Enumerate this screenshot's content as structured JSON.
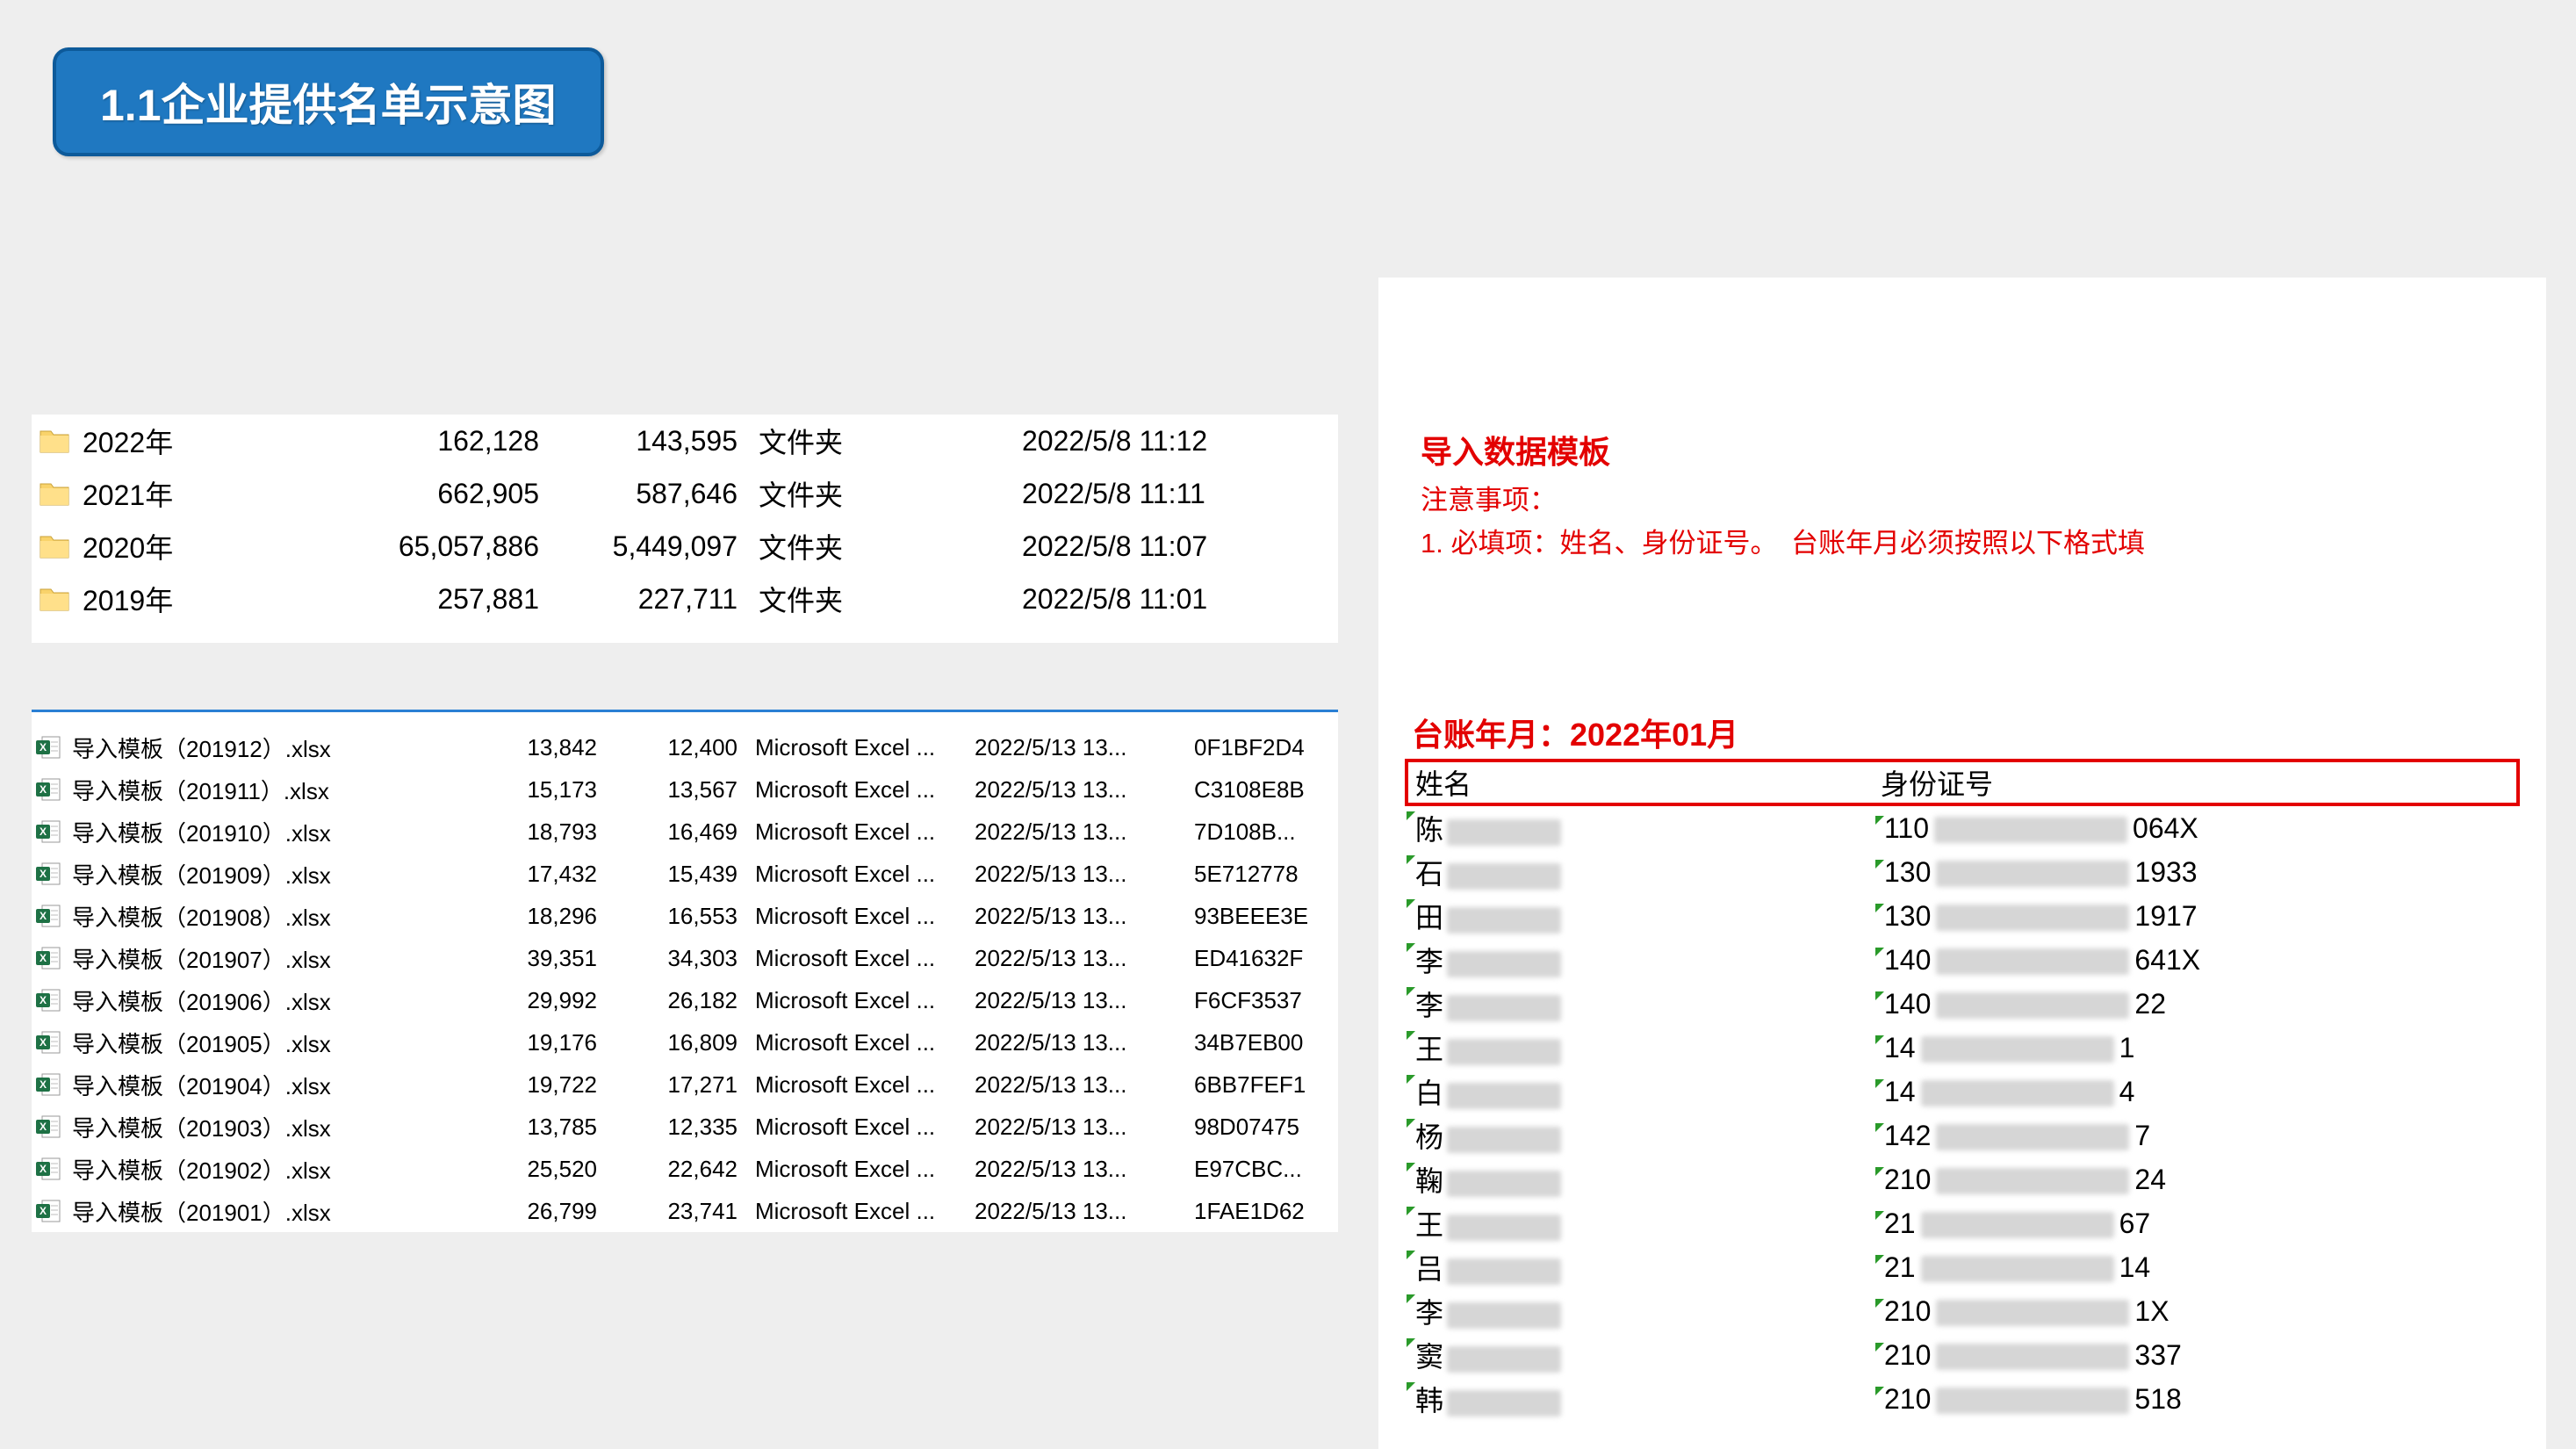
{
  "title": "1.1企业提供名单示意图",
  "folders": [
    {
      "name": "2022年",
      "num1": "162,128",
      "num2": "143,595",
      "type": "文件夹",
      "date": "2022/5/8 11:12"
    },
    {
      "name": "2021年",
      "num1": "662,905",
      "num2": "587,646",
      "type": "文件夹",
      "date": "2022/5/8 11:11"
    },
    {
      "name": "2020年",
      "num1": "65,057,886",
      "num2": "5,449,097",
      "type": "文件夹",
      "date": "2022/5/8 11:07"
    },
    {
      "name": "2019年",
      "num1": "257,881",
      "num2": "227,711",
      "type": "文件夹",
      "date": "2022/5/8 11:01"
    }
  ],
  "files": [
    {
      "name": "导入模板（201912）.xlsx",
      "n1": "13,842",
      "n2": "12,400",
      "type": "Microsoft Excel ...",
      "date": "2022/5/13 13...",
      "hash": "0F1BF2D4"
    },
    {
      "name": "导入模板（201911）.xlsx",
      "n1": "15,173",
      "n2": "13,567",
      "type": "Microsoft Excel ...",
      "date": "2022/5/13 13...",
      "hash": "C3108E8B"
    },
    {
      "name": "导入模板（201910）.xlsx",
      "n1": "18,793",
      "n2": "16,469",
      "type": "Microsoft Excel ...",
      "date": "2022/5/13 13...",
      "hash": "7D108B..."
    },
    {
      "name": "导入模板（201909）.xlsx",
      "n1": "17,432",
      "n2": "15,439",
      "type": "Microsoft Excel ...",
      "date": "2022/5/13 13...",
      "hash": "5E712778"
    },
    {
      "name": "导入模板（201908）.xlsx",
      "n1": "18,296",
      "n2": "16,553",
      "type": "Microsoft Excel ...",
      "date": "2022/5/13 13...",
      "hash": "93BEEE3E"
    },
    {
      "name": "导入模板（201907）.xlsx",
      "n1": "39,351",
      "n2": "34,303",
      "type": "Microsoft Excel ...",
      "date": "2022/5/13 13...",
      "hash": "ED41632F"
    },
    {
      "name": "导入模板（201906）.xlsx",
      "n1": "29,992",
      "n2": "26,182",
      "type": "Microsoft Excel ...",
      "date": "2022/5/13 13...",
      "hash": "F6CF3537"
    },
    {
      "name": "导入模板（201905）.xlsx",
      "n1": "19,176",
      "n2": "16,809",
      "type": "Microsoft Excel ...",
      "date": "2022/5/13 13...",
      "hash": "34B7EB00"
    },
    {
      "name": "导入模板（201904）.xlsx",
      "n1": "19,722",
      "n2": "17,271",
      "type": "Microsoft Excel ...",
      "date": "2022/5/13 13...",
      "hash": "6BB7FEF1"
    },
    {
      "name": "导入模板（201903）.xlsx",
      "n1": "13,785",
      "n2": "12,335",
      "type": "Microsoft Excel ...",
      "date": "2022/5/13 13...",
      "hash": "98D07475"
    },
    {
      "name": "导入模板（201902）.xlsx",
      "n1": "25,520",
      "n2": "22,642",
      "type": "Microsoft Excel ...",
      "date": "2022/5/13 13...",
      "hash": "E97CBC..."
    },
    {
      "name": "导入模板（201901）.xlsx",
      "n1": "26,799",
      "n2": "23,741",
      "type": "Microsoft Excel ...",
      "date": "2022/5/13 13...",
      "hash": "1FAE1D62"
    }
  ],
  "template": {
    "heading": "导入数据模板",
    "sub": "注意事项：",
    "notes": "1. 必填项：姓名、身份证号。　台账年月必须按照以下格式填",
    "ledger": "台账年月：2022年01月",
    "col_name": "姓名",
    "col_id": "身份证号",
    "rows": [
      {
        "name_prefix": "陈",
        "id_prefix": "110",
        "id_suffix": "064X"
      },
      {
        "name_prefix": "石",
        "id_prefix": "130",
        "id_suffix": "1933"
      },
      {
        "name_prefix": "田",
        "id_prefix": "130",
        "id_suffix": "1917"
      },
      {
        "name_prefix": "李",
        "id_prefix": "140",
        "id_suffix": "641X"
      },
      {
        "name_prefix": "李",
        "id_prefix": "140",
        "id_suffix": "22"
      },
      {
        "name_prefix": "王",
        "id_prefix": "14",
        "id_suffix": "1"
      },
      {
        "name_prefix": "白",
        "id_prefix": "14",
        "id_suffix": "4"
      },
      {
        "name_prefix": "杨",
        "id_prefix": "142",
        "id_suffix": "7"
      },
      {
        "name_prefix": "鞠",
        "id_prefix": "210",
        "id_suffix": "24"
      },
      {
        "name_prefix": "王",
        "id_prefix": "21",
        "id_suffix": "67"
      },
      {
        "name_prefix": "吕",
        "id_prefix": "21",
        "id_suffix": "14"
      },
      {
        "name_prefix": "李",
        "id_prefix": "210",
        "id_suffix": "1X"
      },
      {
        "name_prefix": "窦",
        "id_prefix": "210",
        "id_suffix": "337"
      },
      {
        "name_prefix": "韩",
        "id_prefix": "210",
        "id_suffix": "518"
      }
    ]
  },
  "colors": {
    "bg": "#eeeeee",
    "badge_bg": "#1f78c1",
    "badge_border": "#0d5a9a",
    "red": "#e30000",
    "separator": "#2a7fd4"
  }
}
